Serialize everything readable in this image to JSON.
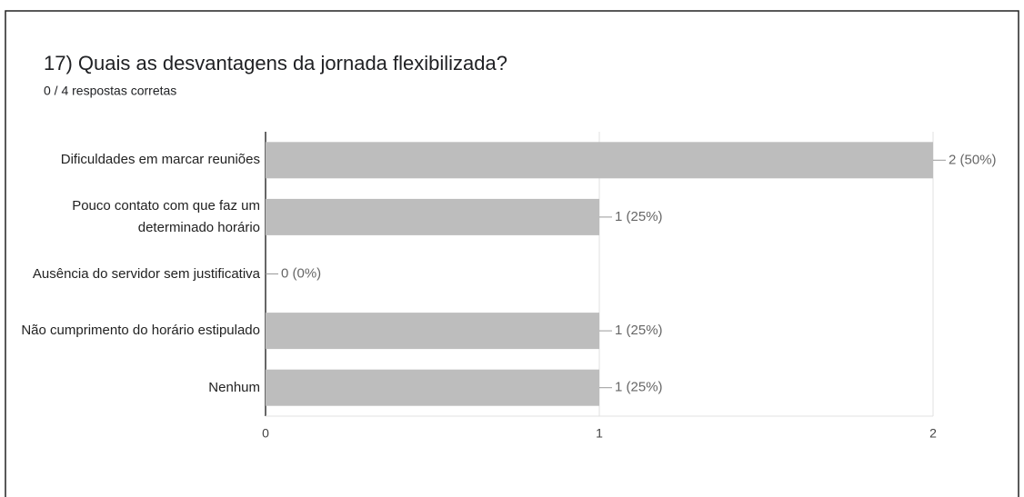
{
  "chart_data": {
    "type": "bar",
    "orientation": "horizontal",
    "title": "17) Quais as desvantagens da jornada flexibilizada?",
    "subtitle": "0 / 4 respostas corretas",
    "categories": [
      "Dificuldades em marcar reuniões",
      "Pouco contato com que faz um determinado horário",
      "Ausência do servidor sem justificativa",
      "Não cumprimento do horário estipulado",
      "Nenhum"
    ],
    "values": [
      2,
      1,
      0,
      1,
      1
    ],
    "value_labels": [
      "2 (50%)",
      "1 (25%)",
      "0 (0%)",
      "1 (25%)",
      "1 (25%)"
    ],
    "color": "#bdbdbd",
    "xlim": [
      0,
      2
    ],
    "xticks": [
      0,
      1,
      2
    ],
    "grid": true
  }
}
